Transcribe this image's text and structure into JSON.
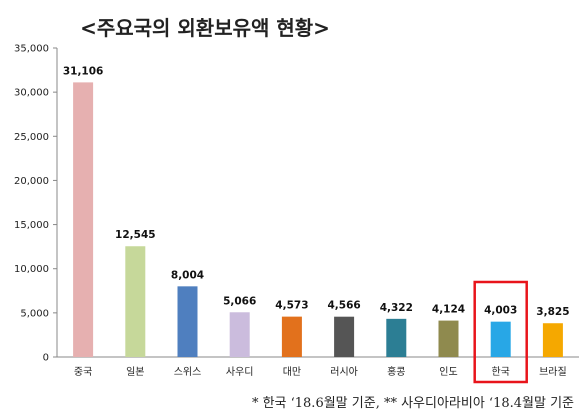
{
  "chart_data": {
    "type": "bar",
    "title": "<주요국의 외환보유액 현황>",
    "categories": [
      "중국",
      "일본",
      "스위스",
      "사우디",
      "대만",
      "러시아",
      "홍콩",
      "인도",
      "한국",
      "브라질"
    ],
    "values": [
      31106,
      12545,
      8004,
      5066,
      4573,
      4566,
      4322,
      4124,
      4003,
      3825
    ],
    "data_labels": [
      "31,106",
      "12,545",
      "8,004",
      "5,066",
      "4,573",
      "4,566",
      "4,322",
      "4,124",
      "4,003",
      "3,825"
    ],
    "colors": [
      "#e6b0b0",
      "#c6d89a",
      "#4f7fbf",
      "#cbbcdd",
      "#e2711c",
      "#555555",
      "#2c7e94",
      "#8f8a4e",
      "#28a7e6",
      "#f5a800"
    ],
    "highlight_category": "한국",
    "highlight_color": "#e8141b",
    "yticks": [
      "0",
      "5,000",
      "10,000",
      "15,000",
      "20,000",
      "25,000",
      "30,000",
      "35,000"
    ],
    "ylim": [
      0,
      35000
    ],
    "grid": false,
    "xlabel": "",
    "ylabel": ""
  },
  "footnote": "*  한국  ‘18.6월말  기준,   **  사우디아라비아  ‘18.4월말  기준"
}
